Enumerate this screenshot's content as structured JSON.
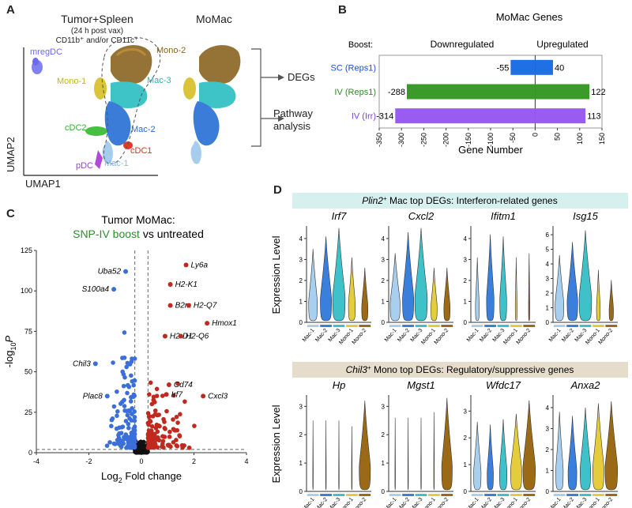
{
  "panels": {
    "A": "A",
    "B": "B",
    "C": "C",
    "D": "D"
  },
  "panel_a": {
    "title": "Tumor+Spleen",
    "subtitle1": "(24 h post vax)",
    "subtitle2": "CD11b⁺ and/or CD11c⁺",
    "right_title": "MoMac",
    "xlabel": "UMAP1",
    "ylabel": "UMAP2",
    "clusters": {
      "mregdc": "mregDC",
      "mono1": "Mono-1",
      "mono2": "Mono-2",
      "mac3": "Mac-3",
      "mac2": "Mac-2",
      "mac1": "Mac-1",
      "cdc2": "cDC2",
      "cdc1": "cDC1",
      "pdc": "pDC"
    },
    "outputs": [
      "DEGs",
      "Pathway",
      "analysis"
    ]
  },
  "chart_data": [
    {
      "type": "bar",
      "title": "MoMac Genes",
      "legend_boost": "Boost:",
      "left_header": "Downregulated",
      "right_header": "Upregulated",
      "xlabel": "Gene Number",
      "xlim": [
        -350,
        150
      ],
      "ticks": [
        "-350",
        "-300",
        "-250",
        "-200",
        "-150",
        "-100",
        "-50",
        "0",
        "50",
        "100",
        "150"
      ],
      "tick_values": [
        -350,
        -300,
        -250,
        -200,
        -150,
        -100,
        -50,
        0,
        50,
        100,
        150
      ],
      "rows": [
        {
          "label": "SC (Reps1)",
          "down": -55,
          "up": 40,
          "down_label": "-55",
          "up_label": "40",
          "color": "#1f6fe5",
          "label_color": "#1f4fd0"
        },
        {
          "label": "IV (Reps1)",
          "down": -288,
          "up": 122,
          "down_label": "-288",
          "up_label": "122",
          "color": "#3a9a2a",
          "label_color": "#2f8a22"
        },
        {
          "label": "IV (Irr)",
          "down": -314,
          "up": 113,
          "down_label": "-314",
          "up_label": "113",
          "color": "#9a5cf0",
          "label_color": "#7a44d8"
        }
      ]
    },
    {
      "type": "scatter",
      "title_line1": "Tumor MoMac:",
      "title_highlight": "SNP-IV boost",
      "title_rest": " vs untreated",
      "xlabel": "Log2 Fold change",
      "xlabel_main": "Log",
      "xlabel_sub": "2",
      "xlabel_rest": " Fold change",
      "ylabel_main": "-log",
      "ylabel_sub": "10",
      "ylabel_rest": "P",
      "xlim": [
        -4,
        4
      ],
      "ylim": [
        0,
        125
      ],
      "xticks": [
        "-4",
        "-2",
        "0",
        "2",
        "4"
      ],
      "xtick_values": [
        -4,
        -2,
        0,
        2,
        4
      ],
      "yticks": [
        "0",
        "25",
        "50",
        "75",
        "100",
        "125"
      ],
      "ytick_values": [
        0,
        25,
        50,
        75,
        100,
        125
      ],
      "labeled_points": [
        {
          "gene": "Uba52",
          "x": -0.6,
          "y": 112,
          "color": "#3b6fd8"
        },
        {
          "gene": "S100a4",
          "x": -1.05,
          "y": 101,
          "color": "#3b6fd8"
        },
        {
          "gene": "Chil3",
          "x": -1.75,
          "y": 55,
          "color": "#3b6fd8"
        },
        {
          "gene": "Plac8",
          "x": -1.3,
          "y": 35,
          "color": "#3b6fd8"
        },
        {
          "gene": "Ly6a",
          "x": 1.7,
          "y": 116,
          "color": "#c02a1e"
        },
        {
          "gene": "H2-K1",
          "x": 1.1,
          "y": 104,
          "color": "#c02a1e"
        },
        {
          "gene": "B2m",
          "x": 1.1,
          "y": 91,
          "color": "#c02a1e"
        },
        {
          "gene": "H2-Q7",
          "x": 1.8,
          "y": 91,
          "color": "#c02a1e"
        },
        {
          "gene": "Hmox1",
          "x": 2.5,
          "y": 80,
          "color": "#c02a1e"
        },
        {
          "gene": "H2-D1",
          "x": 0.9,
          "y": 72,
          "color": "#c02a1e"
        },
        {
          "gene": "H2-Q6",
          "x": 1.5,
          "y": 72,
          "color": "#c02a1e"
        },
        {
          "gene": "Cd74",
          "x": 1.05,
          "y": 42,
          "color": "#c02a1e"
        },
        {
          "gene": "Irf7",
          "x": 0.95,
          "y": 36,
          "color": "#c02a1e"
        },
        {
          "gene": "Cxcl3",
          "x": 2.35,
          "y": 35,
          "color": "#c02a1e"
        }
      ]
    }
  ],
  "panel_d": {
    "banner1_gene": "Plin2",
    "banner1_rest": " Mac top DEGs: Interferon-related genes",
    "banner2_gene": "Chil3",
    "banner2_rest": " Mono top DEGs: Regulatory/suppressive genes",
    "ylabel": "Expression Level",
    "groups": [
      "Mac-1",
      "Mac-2",
      "Mac-3",
      "Mono-1",
      "Mono-2"
    ],
    "group_colors": [
      "#a9cfee",
      "#3a7fdc",
      "#3fc1c9",
      "#e5cc3d",
      "#9a6a16"
    ],
    "row1": [
      {
        "gene": "Irf7",
        "ticks": [
          "0",
          "1",
          "2",
          "3",
          "4"
        ],
        "ymax": 4.6,
        "widths": [
          0.7,
          0.9,
          1.0,
          0.55,
          0.5
        ],
        "tops": [
          3.5,
          4.1,
          4.5,
          3.1,
          2.6
        ]
      },
      {
        "gene": "Cxcl2",
        "ticks": [
          "0",
          "1",
          "2",
          "3",
          "4"
        ],
        "ymax": 4.6,
        "widths": [
          0.8,
          0.9,
          1.0,
          0.5,
          0.5
        ],
        "tops": [
          3.3,
          4.3,
          4.5,
          2.6,
          2.6
        ]
      },
      {
        "gene": "Ifitm1",
        "ticks": [
          "0",
          "1",
          "2",
          "3",
          "4"
        ],
        "ymax": 4.6,
        "widths": [
          0.3,
          0.6,
          0.55,
          0.15,
          0.1
        ],
        "tops": [
          3.1,
          4.2,
          4.1,
          3.1,
          3.3
        ]
      },
      {
        "gene": "Isg15",
        "ticks": [
          "0",
          "1",
          "2",
          "3",
          "4",
          "5",
          "6"
        ],
        "ymax": 6.6,
        "widths": [
          0.7,
          0.85,
          1.0,
          0.3,
          0.35
        ],
        "tops": [
          4.6,
          5.5,
          6.3,
          3.6,
          2.9
        ]
      }
    ],
    "row2": [
      {
        "gene": "Hp",
        "ticks": [
          "0",
          "1",
          "2",
          "3"
        ],
        "ymax": 3.4,
        "widths": [
          0.04,
          0.04,
          0.04,
          0.05,
          0.9
        ],
        "tops": [
          2.5,
          2.5,
          2.5,
          2.3,
          3.2
        ]
      },
      {
        "gene": "Mgst1",
        "ticks": [
          "0",
          "1",
          "2",
          "3"
        ],
        "ymax": 3.4,
        "widths": [
          0.04,
          0.04,
          0.04,
          0.05,
          0.85
        ],
        "tops": [
          2.6,
          2.6,
          2.6,
          2.8,
          3.3
        ]
      },
      {
        "gene": "Wfdc17",
        "ticks": [
          "0",
          "1",
          "2",
          "3"
        ],
        "ymax": 3.6,
        "widths": [
          0.6,
          0.5,
          0.6,
          0.9,
          1.0
        ],
        "tops": [
          2.6,
          2.5,
          2.7,
          2.9,
          3.4
        ]
      },
      {
        "gene": "Anxa2",
        "ticks": [
          "0",
          "1",
          "2",
          "3",
          "4"
        ],
        "ymax": 4.6,
        "widths": [
          0.6,
          0.7,
          0.85,
          0.9,
          1.0
        ],
        "tops": [
          3.8,
          3.6,
          4.0,
          4.2,
          4.3
        ]
      }
    ]
  }
}
